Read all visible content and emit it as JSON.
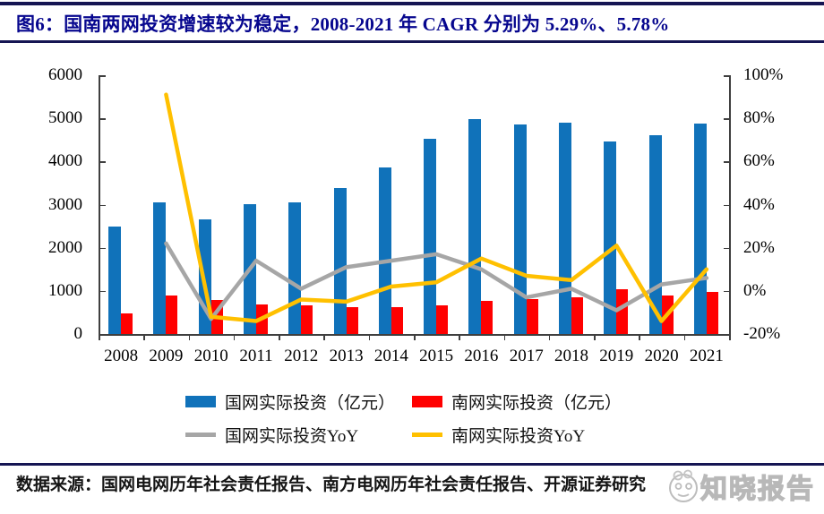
{
  "header": {
    "title": "图6：国南两网投资增速较为稳定，2008-2021 年 CAGR 分别为 5.29%、5.78%"
  },
  "chart_data": {
    "type": "bar",
    "subtype": "bar-line-combo",
    "title": "国南两网投资增速较为稳定，2008-2021 年 CAGR 分别为 5.29%、5.78%",
    "categories": [
      "2008",
      "2009",
      "2010",
      "2011",
      "2012",
      "2013",
      "2014",
      "2015",
      "2016",
      "2017",
      "2018",
      "2019",
      "2020",
      "2021"
    ],
    "series": [
      {
        "name": "国网实际投资（亿元）",
        "type": "bar",
        "axis": "left",
        "color": "#1072BA",
        "values": [
          2500,
          3050,
          2650,
          3020,
          3050,
          3380,
          3855,
          4520,
          4980,
          4850,
          4890,
          4470,
          4610,
          4870
        ]
      },
      {
        "name": "南网实际投资（亿元）",
        "type": "bar",
        "axis": "left",
        "color": "#FF0000",
        "values": [
          470,
          900,
          790,
          680,
          655,
          620,
          633,
          660,
          760,
          810,
          850,
          1030,
          890,
          980
        ]
      },
      {
        "name": "国网实际投资YoY",
        "type": "line",
        "axis": "right",
        "unit": "%",
        "color": "#A6A6A6",
        "values": [
          null,
          22,
          -13,
          14,
          1,
          11,
          14,
          17,
          10,
          -3,
          1,
          -9,
          3,
          6
        ]
      },
      {
        "name": "南网实际投资YoY",
        "type": "line",
        "axis": "right",
        "unit": "%",
        "color": "#FFC000",
        "values": [
          null,
          91,
          -12,
          -14,
          -4,
          -5,
          2,
          4,
          15,
          7,
          5,
          21,
          -14,
          10
        ]
      }
    ],
    "left_axis": {
      "min": 0,
      "max": 6000,
      "step": 1000,
      "tick_labels": [
        "0",
        "1000",
        "2000",
        "3000",
        "4000",
        "5000",
        "6000"
      ]
    },
    "right_axis": {
      "min": -20,
      "max": 100,
      "step": 20,
      "tick_labels": [
        "-20%",
        "0%",
        "20%",
        "40%",
        "60%",
        "80%",
        "100%"
      ]
    },
    "grid": false,
    "legend_position": "bottom"
  },
  "footer": {
    "source": "数据来源：国网电网历年社会责任报告、南方电网历年社会责任报告、开源证券研究",
    "watermark": "知晓报告"
  },
  "colors": {
    "title_navy": "#06068e",
    "rule_navy": "#151553",
    "axis_gray": "#3f3f3f",
    "state_grid_blue": "#1072BA",
    "southern_grid_red": "#FF0000",
    "state_grid_yoy_gray": "#A6A6A6",
    "southern_grid_yoy_yellow": "#FFC000",
    "watermark_gray": "#b8b8b8"
  }
}
